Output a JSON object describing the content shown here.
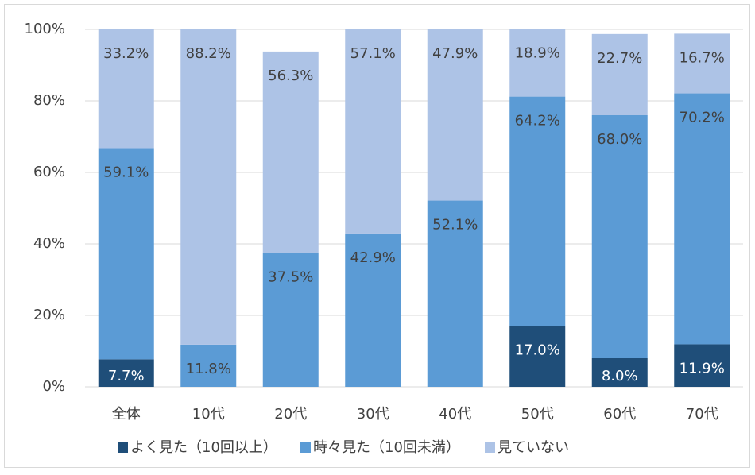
{
  "chart_data": {
    "type": "stacked_bar",
    "categories": [
      "全体",
      "10代",
      "20代",
      "30代",
      "40代",
      "50代",
      "60代",
      "70代"
    ],
    "series": [
      {
        "name": "よく見た（10回以上）",
        "color": "#1f4e79",
        "label_color": "#ffffff",
        "values": [
          7.7,
          null,
          null,
          null,
          null,
          17.0,
          8.0,
          11.9
        ],
        "value_labels": [
          "7.7%",
          null,
          null,
          null,
          null,
          "17.0%",
          "8.0%",
          "11.9%"
        ]
      },
      {
        "name": "時々見た（10回未満）",
        "color": "#5b9bd5",
        "label_color": "#404040",
        "values": [
          59.1,
          11.8,
          37.5,
          42.9,
          52.1,
          64.2,
          68.0,
          70.2
        ],
        "value_labels": [
          "59.1%",
          "11.8%",
          "37.5%",
          "42.9%",
          "52.1%",
          "64.2%",
          "68.0%",
          "70.2%"
        ]
      },
      {
        "name": "見ていない",
        "color": "#adc3e6",
        "label_color": "#404040",
        "values": [
          33.2,
          88.2,
          56.3,
          57.1,
          47.9,
          18.9,
          22.7,
          16.7
        ],
        "value_labels": [
          "33.2%",
          "88.2%",
          "56.3%",
          "57.1%",
          "47.9%",
          "18.9%",
          "22.7%",
          "16.7%"
        ]
      }
    ],
    "ylim": [
      0,
      100
    ],
    "yticks": [
      {
        "value": 0,
        "label": "0%"
      },
      {
        "value": 20,
        "label": "20%"
      },
      {
        "value": 40,
        "label": "40%"
      },
      {
        "value": 60,
        "label": "60%"
      },
      {
        "value": 80,
        "label": "80%"
      },
      {
        "value": 100,
        "label": "100%"
      }
    ],
    "grid": true,
    "legend": "bottom"
  }
}
